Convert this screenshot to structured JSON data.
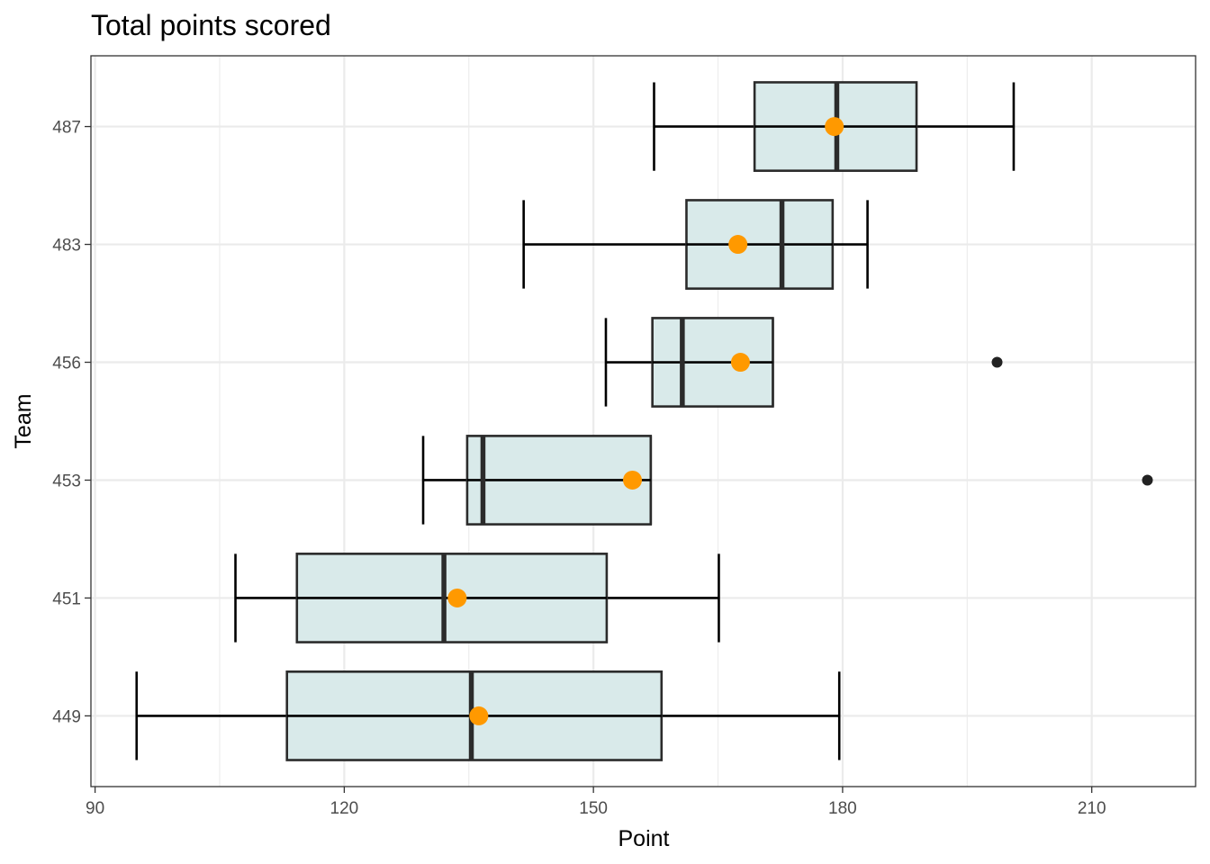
{
  "chart_data": {
    "type": "boxplot",
    "title": "Total points scored",
    "xlabel": "Point",
    "ylabel": "Team",
    "xlim": [
      89.5,
      222.5
    ],
    "x_ticks": [
      90,
      120,
      150,
      180,
      210
    ],
    "grid": true,
    "colors": {
      "box_fill": "#d9eaea",
      "box_stroke": "#2b2b2b",
      "mean_point": "#ff9900",
      "outlier": "#222222",
      "grid": "#ebebeb"
    },
    "categories": [
      "449",
      "451",
      "453",
      "456",
      "483",
      "487"
    ],
    "boxes": [
      {
        "team": "449",
        "whisker_low": 95.0,
        "q1": 113.1,
        "median": 135.3,
        "q3": 158.2,
        "whisker_high": 179.6,
        "mean": 136.2,
        "outliers": []
      },
      {
        "team": "451",
        "whisker_low": 106.9,
        "q1": 114.3,
        "median": 132.0,
        "q3": 151.6,
        "whisker_high": 165.1,
        "mean": 133.6,
        "outliers": []
      },
      {
        "team": "453",
        "whisker_low": 129.5,
        "q1": 134.8,
        "median": 136.7,
        "q3": 156.9,
        "whisker_high": 156.9,
        "mean": 154.7,
        "outliers": [
          216.7
        ]
      },
      {
        "team": "456",
        "whisker_low": 151.5,
        "q1": 157.1,
        "median": 160.7,
        "q3": 171.6,
        "whisker_high": 171.6,
        "mean": 167.7,
        "outliers": [
          198.6
        ]
      },
      {
        "team": "483",
        "whisker_low": 141.6,
        "q1": 161.2,
        "median": 172.7,
        "q3": 178.8,
        "whisker_high": 183.0,
        "mean": 167.4,
        "outliers": []
      },
      {
        "team": "487",
        "whisker_low": 157.3,
        "q1": 169.4,
        "median": 179.3,
        "q3": 188.9,
        "whisker_high": 200.6,
        "mean": 179.0,
        "outliers": []
      }
    ]
  }
}
